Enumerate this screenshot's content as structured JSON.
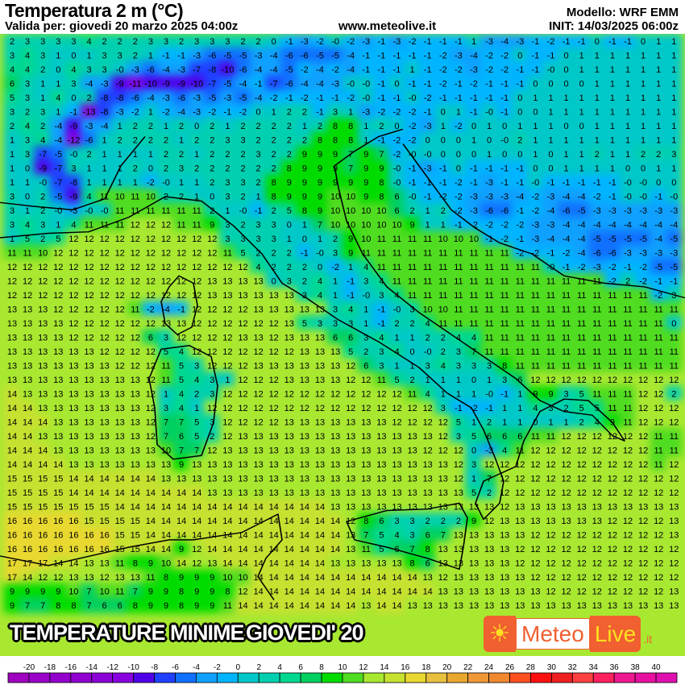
{
  "header": {
    "title": "Temperatura 2 m (°C)",
    "valid": "Valida per: giovedi 20 marzo 2025 04:00z",
    "model": "Modello: WRF EMM",
    "init": "INIT: 14/03/2025 06:00z"
  },
  "overlay": {
    "line1": "TEMPERATURE MINIME",
    "line2": "GIOVEDI' 20",
    "website": "www.meteolive.it"
  },
  "logo": {
    "text1": "Meteo",
    "text2": "Live",
    "suffix": ".it",
    "icon": "sun-icon"
  },
  "colorbar": {
    "labels": [
      "-20",
      "-18",
      "-16",
      "-14",
      "-12",
      "-10",
      "-8",
      "-6",
      "-4",
      "-2",
      "0",
      "2",
      "4",
      "6",
      "8",
      "10",
      "12",
      "14",
      "16",
      "18",
      "20",
      "22",
      "24",
      "26",
      "28",
      "30",
      "32",
      "34",
      "36",
      "38",
      "40"
    ],
    "colors": [
      "#a000c0",
      "#9a00c8",
      "#9400cc",
      "#9000d0",
      "#8c00d8",
      "#8800e0",
      "#5000e8",
      "#2040ff",
      "#1070ff",
      "#10a0ff",
      "#00b4ff",
      "#00c8c8",
      "#00d0b0",
      "#00d890",
      "#00d060",
      "#00dc00",
      "#50dc20",
      "#a8e830",
      "#c8e030",
      "#e8d830",
      "#e8c040",
      "#e8a830",
      "#f09838",
      "#f08830",
      "#ff5020",
      "#ff1010",
      "#f02020",
      "#ff4040",
      "#ff2060",
      "#f01890",
      "#e810a0",
      "#e010b0"
    ]
  },
  "grid_values": [
    "2 3 3 3 3 4 2 2 2 3 3 2 3 3 3 2 2 0 -1 -3 -2 -0 -2 -3 -1 -3 -2 -1 -1 -1 1 -3 -4 -3 -1 -2 -1 -1 0 -1 -1 0 1 1",
    "3 4 3 1 0 1 3 3 2 1 -1 -1 -3 -6 -5 -5 -3 -4 -6 -6 -5 -5 -4 -1 -1 -1 -1 -1 -2 -3 -4 -2 -2 0 -1 -1 0 1 1 1 1 1 1 1",
    "4 4 2 0 4 3 3 -0 -3 -6 -4 -3 -7 -8 -10 -6 -4 -4 -5 -2 -4 -2 -4 -1 -1 -1 1 -1 -2 -2 -3 -2 -2 -1 -1 -0 0 1 1 1 1 1 1 1",
    "6 3 1 1 3 -4 -3 -9 -11 -10 -9 -9 -10 -7 -5 -4 -1 -7 -6 -4 -4 -3 -0 -0 -1 0 -1 -1 -2 -1 -2 -1 -1 -1 0 0 0 0 1 1 1 1 1 1",
    "5 3 1 4 0 2 -8 -8 -6 -4 -3 -6 -3 -5 -3 -5 -4 -2 -1 -2 -1 -1 -2 -0 -1 -1 -0 -2 -1 -1 -1 -1 -1 0 1 1 1 1 1 1 1 1 1 1",
    "3 2 3 1 -1 -13 -8 -3 -2 1 -2 -4 -3 -2 -1 -2 0 1 2 2 -1 3 1 -3 -2 -2 -2 -1 0 1 -1 -0 -1 0 0 1 1 1 1 1 1 1 1 1",
    "2 4 2 -4 -9 -3 -4 1 2 2 1 2 0 2 1 2 2 2 2 1 2 8 8 1 2 0 -2 -3 1 -2 0 1 0 1 1 1 0 0 1 1 1 1 1 1",
    "1 3 4 -4 -12 -6 1 2 2 2 2 1 2 2 3 3 2 2 2 2 8 8 8 1 -1 -2 -2 0 0 0 1 0 -0 2 1 1 1 1 1 1 1 1 1 1",
    "1 3 -7 -5 -0 2 1 1 1 1 2 2 1 2 2 2 3 2 2 9 9 9 7 9 7 -2 -0 -0 0 0 0 1 0 0 1 0 1 1 2 1 1 2 2 3",
    "1 0 -9 -7 3 1 1 1 2 0 2 3 2 2 2 2 2 2 8 9 9 9 7 9 9 -0 -1 -3 -1 0 -1 -1 -1 -1 0 0 1 1 1 1 0 0 1 1",
    "1 1 -0 -7 -8 1 1 1 1 -2 -0 1 1 2 3 3 2 8 9 9 9 9 9 9 8 -0 -1 -1 -1 -2 -1 -3 -1 -1 -0 -1 -1 -1 -1 -1 -0 -0 0 0",
    "3 0 2 -5 -9 4 11 10 11 10 2 2 1 0 3 2 1 8 9 9 9 10 10 9 8 6 -0 -1 -2 -2 -3 -3 -3 -4 -2 -3 -4 -4 -2 -1 -0 -0 -1 -0",
    "3 1 2 -0 -3 -0 -0 11 11 11 11 11 11 2 1 -0 -1 2 5 8 9 10 10 10 10 6 2 1 2 -2 -3 -6 -6 -1 -2 -4 -6 -5 -3 -3 -3 -3 -3 -3",
    "3 4 3 1 4 11 11 11 12 12 12 11 11 9 3 2 3 3 0 1 7 10 10 10 10 10 9 1 1 -1 -2 -2 -2 -2 -3 -3 -4 -4 -4 -4 -4 -4 -4 -4",
    "1 5 2 5 12 12 12 12 12 12 12 12 12 12 3 3 3 3 1 0 1 2 9 10 11 11 11 11 10 10 10 -1 -2 -1 -3 -4 -4 -4 -5 -5 -5 -5 -4 -5",
    "11 11 10 12 12 12 12 12 12 12 12 12 12 12 11 5 2 2 2 -1 -0 3 9 11 11 11 11 11 11 11 11 11 11 -2 -2 -1 -2 -4 -6 -6 -3 -3 -3 -3",
    "12 12 12 12 12 12 12 12 12 12 12 12 12 12 12 12 4 2 2 2 0 -2 1 4 11 11 11 11 11 11 11 11 11 11 11 -0 -1 -2 -3 -2 -1 -2 -5 -5",
    "12 12 12 12 12 12 12 12 12 12 12 12 12 13 13 13 13 0 3 2 4 1 -1 3 4 11 11 11 11 11 11 11 11 11 11 11 11 11 11 -2 2 -2 -1 -1",
    "12 12 12 12 12 12 12 12 12 12 12 12 12 13 13 13 13 13 13 3 4 1 -1 -0 3 4 11 11 11 11 11 11 11 11 11 11 11 11 11 11 11 11 -2 3",
    "13 13 13 12 12 12 12 12 11 -2 -4 -1 12 12 12 12 13 13 13 13 13 3 4 1 -1 -0 3 10 10 11 11 11 11 11 11 11 11 11 11 11 11 11 11 11",
    "13 13 13 13 12 12 12 12 12 12 13 13 12 12 12 12 12 12 13 5 3 3 3 1 -1 2 2 4 11 11 11 11 11 11 11 11 11 11 11 11 11 11 11 0",
    "13 13 13 13 12 12 12 12 12 6 3 12 12 12 12 13 13 12 13 13 13 6 6 3 4 1 1 2 2 4 4 11 11 11 11 11 11 11 11 11 11 11 11 11",
    "13 13 13 13 13 13 12 12 12 12 5 4 12 12 12 12 12 12 12 13 13 13 5 2 3 4 0 -0 2 3 7 11 11 11 11 11 11 11 11 11 11 11 11 11",
    "13 13 13 13 13 13 13 12 12 12 11 5 3 12 12 12 13 13 13 13 13 13 12 6 3 1 1 3 4 3 3 3 8 11 11 11 11 11 11 11 11 11 11 11",
    "13 13 13 13 13 13 13 13 13 12 11 5 4 3 1 12 12 12 13 13 13 13 12 12 11 5 2 1 1 1 0 1 3 6 12 12 12 12 12 12 12 12 12 12",
    "14 13 13 13 13 13 13 13 13 12 1 4 2 3 12 12 12 12 12 12 12 12 12 12 12 12 11 4 1 1 1 -0 -1 1 9 9 3 5 11 11 11 12 12 2",
    "14 14 13 13 13 13 13 13 13 12 3 4 1 12 12 12 12 12 12 12 12 12 12 12 12 12 12 12 3 -1 -2 -1 1 1 4 3 2 5 5 11 11 12 12 12",
    "14 14 14 13 13 13 13 13 13 12 7 7 5 3 12 12 12 12 13 13 13 13 13 13 13 12 12 12 12 5 1 2 1 1 0 1 1 2 4 9 11 12 12 12",
    "14 14 13 13 13 13 13 13 13 12 7 6 5 2 12 13 13 13 13 13 13 13 13 13 13 13 13 13 12 3 5 6 6 6 11 11 12 12 12 12 12 12 11 11",
    "14 14 14 13 13 13 13 13 13 13 10 7 7 12 13 13 13 13 13 13 13 13 13 13 13 13 13 12 12 12 0 -3 4 11 12 12 12 12 12 12 12 12 11 11",
    "14 14 14 14 13 13 13 13 13 13 13 9 13 13 13 13 13 13 13 13 13 13 13 13 13 13 13 13 13 12 3 12 12 12 12 12 12 12 12 12 12 12 11 12",
    "15 15 15 15 14 14 14 14 14 14 13 13 13 13 13 13 13 13 13 13 13 13 13 13 13 13 13 13 13 12 1 7 12 12 12 12 12 12 12 12 12 12 12 12",
    "15 15 15 15 14 14 14 14 14 14 14 14 14 13 13 13 13 13 13 13 13 13 13 13 13 13 13 13 13 13 5 2 12 12 12 12 12 12 12 12 12 12 12 12",
    "15 15 15 15 15 15 15 14 14 14 14 14 14 14 14 14 14 14 14 14 14 13 13 13 13 13 13 13 13 13 13 13 12 13 13 13 13 13 13 13 13 13 13 13",
    "16 16 16 16 16 15 15 15 15 14 14 14 14 14 14 14 14 14 14 14 14 14 12 8 6 3 3 2 2 2 9 12 13 13 13 13 13 13 13 12 12 12 12 13",
    "16 16 16 16 16 16 16 15 15 14 14 14 14 14 14 14 14 14 14 14 14 14 13 7 5 4 3 6 7 13 13 13 13 13 12 12 12 12 12 12 12 12 12 13",
    "16 16 16 16 16 16 16 15 15 14 14 9 12 14 14 14 14 14 14 14 14 14 13 11 5 6 7 8 13 13 13 13 13 12 12 12 12 12 12 12 12 12 12 12",
    "17 17 17 14 14 13 13 11 8 9 10 14 12 13 14 14 14 14 14 14 14 13 13 13 13 13 8 6 13 13 13 13 13 12 12 12 12 12 12 12 12 12 12 12",
    "17 14 12 12 13 13 12 13 13 11 8 9 9 9 10 10 14 14 14 14 14 14 14 14 14 14 14 13 12 13 13 13 13 13 12 12 12 12 12 12 12 12 12 12",
    "9 9 9 9 10 7 10 11 7 9 9 8 9 9 8 12 14 14 14 14 14 14 14 14 14 14 14 14 13 13 13 13 13 13 13 12 12 12 12 12 12 12 12 13",
    "9 7 7 8 8 7 6 6 8 9 9 8 9 9 11 14 14 14 14 14 14 14 14 13 14 14 13 13 13 13 13 13 13 13 13 13 13 13 13 13 13 13 13 13"
  ]
}
